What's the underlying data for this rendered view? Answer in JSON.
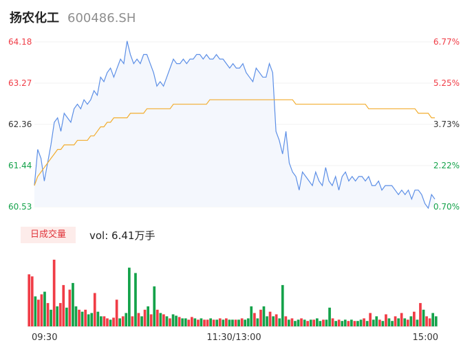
{
  "header": {
    "name": "扬农化工",
    "code": "600486.SH"
  },
  "colors": {
    "up": "#f03c46",
    "down": "#14a24a",
    "neutral": "#333333",
    "price_line": "#5b8ee6",
    "price_fill": "#f4f7fd",
    "avg_line": "#f2ac2c"
  },
  "volume_panel": {
    "badge_label": "日成交量",
    "value_text": "vol: 6.41万手"
  },
  "chart_data": [
    {
      "type": "line",
      "title": "",
      "xlabel": "",
      "ylabel": "",
      "y_ticks": [
        "64.18",
        "63.27",
        "62.36",
        "61.44",
        "60.53"
      ],
      "pct_ticks": [
        "6.77%",
        "5.25%",
        "3.73%",
        "2.22%",
        "0.70%"
      ],
      "ylim": [
        60.53,
        64.18
      ],
      "x_ticks": [
        "09:30",
        "11:30/13:00",
        "15:00"
      ],
      "series": [
        {
          "role": "price",
          "values": [
            61.0,
            61.8,
            61.6,
            61.1,
            61.5,
            61.9,
            62.4,
            62.5,
            62.2,
            62.6,
            62.5,
            62.4,
            62.7,
            62.8,
            62.7,
            62.9,
            62.8,
            62.9,
            63.1,
            63.0,
            63.4,
            63.3,
            63.5,
            63.6,
            63.4,
            63.6,
            63.8,
            63.7,
            64.2,
            63.9,
            63.7,
            63.8,
            63.7,
            63.9,
            63.9,
            63.7,
            63.5,
            63.2,
            63.3,
            63.2,
            63.4,
            63.6,
            63.8,
            63.7,
            63.7,
            63.8,
            63.7,
            63.8,
            63.8,
            63.9,
            63.9,
            63.8,
            63.9,
            63.8,
            63.8,
            63.9,
            63.8,
            63.8,
            63.7,
            63.6,
            63.7,
            63.6,
            63.6,
            63.7,
            63.5,
            63.4,
            63.3,
            63.6,
            63.5,
            63.4,
            63.4,
            63.7,
            63.5,
            62.2,
            62.0,
            61.7,
            62.2,
            61.5,
            61.3,
            61.2,
            60.9,
            61.3,
            61.2,
            61.1,
            61.0,
            61.3,
            61.1,
            61.0,
            61.4,
            61.1,
            61.0,
            61.2,
            60.9,
            61.2,
            61.3,
            61.1,
            61.2,
            61.1,
            61.2,
            61.2,
            61.1,
            61.2,
            61.0,
            61.0,
            61.1,
            60.9,
            61.0,
            61.0,
            61.0,
            60.9,
            60.8,
            60.9,
            60.8,
            60.9,
            60.7,
            60.9,
            60.9,
            60.8,
            60.6,
            60.5,
            60.8,
            60.7
          ]
        },
        {
          "role": "average",
          "values": [
            61.0,
            61.2,
            61.3,
            61.4,
            61.5,
            61.6,
            61.7,
            61.8,
            61.8,
            61.9,
            61.9,
            61.9,
            61.9,
            62.0,
            62.0,
            62.0,
            62.0,
            62.1,
            62.1,
            62.2,
            62.3,
            62.3,
            62.4,
            62.4,
            62.5,
            62.5,
            62.5,
            62.5,
            62.5,
            62.6,
            62.6,
            62.6,
            62.6,
            62.6,
            62.7,
            62.7,
            62.7,
            62.7,
            62.7,
            62.7,
            62.7,
            62.7,
            62.8,
            62.8,
            62.8,
            62.8,
            62.8,
            62.8,
            62.8,
            62.8,
            62.8,
            62.8,
            62.8,
            62.9,
            62.9,
            62.9,
            62.9,
            62.9,
            62.9,
            62.9,
            62.9,
            62.9,
            62.9,
            62.9,
            62.9,
            62.9,
            62.9,
            62.9,
            62.9,
            62.9,
            62.9,
            62.9,
            62.9,
            62.9,
            62.9,
            62.9,
            62.9,
            62.9,
            62.9,
            62.8,
            62.8,
            62.8,
            62.8,
            62.8,
            62.8,
            62.8,
            62.8,
            62.8,
            62.8,
            62.8,
            62.8,
            62.8,
            62.8,
            62.8,
            62.8,
            62.8,
            62.8,
            62.8,
            62.8,
            62.8,
            62.8,
            62.7,
            62.7,
            62.7,
            62.7,
            62.7,
            62.7,
            62.7,
            62.7,
            62.7,
            62.7,
            62.7,
            62.7,
            62.7,
            62.7,
            62.7,
            62.6,
            62.6,
            62.6,
            62.6,
            62.5,
            62.5
          ]
        }
      ]
    },
    {
      "type": "bar",
      "title": "",
      "xlabel": "",
      "ylabel": "",
      "values": [
        0.78,
        0.75,
        0.45,
        0.4,
        0.48,
        0.52,
        0.35,
        0.25,
        1.0,
        0.3,
        0.35,
        0.62,
        0.28,
        0.55,
        0.65,
        0.3,
        0.25,
        0.22,
        0.25,
        0.18,
        0.2,
        0.5,
        0.22,
        0.15,
        0.15,
        0.12,
        0.1,
        0.13,
        0.4,
        0.12,
        0.15,
        0.2,
        0.88,
        0.15,
        0.8,
        0.2,
        0.15,
        0.25,
        0.3,
        0.18,
        0.6,
        0.25,
        0.2,
        0.18,
        0.15,
        0.12,
        0.18,
        0.16,
        0.14,
        0.12,
        0.12,
        0.1,
        0.14,
        0.12,
        0.1,
        0.12,
        0.1,
        0.1,
        0.12,
        0.1,
        0.1,
        0.12,
        0.1,
        0.12,
        0.1,
        0.1,
        0.1,
        0.1,
        0.12,
        0.1,
        0.12,
        0.3,
        0.2,
        0.12,
        0.25,
        0.3,
        0.15,
        0.22,
        0.15,
        0.18,
        0.12,
        0.62,
        0.15,
        0.1,
        0.12,
        0.08,
        0.1,
        0.12,
        0.1,
        0.08,
        0.1,
        0.1,
        0.12,
        0.08,
        0.1,
        0.1,
        0.28,
        0.12,
        0.08,
        0.1,
        0.08,
        0.1,
        0.08,
        0.1,
        0.08,
        0.08,
        0.1,
        0.12,
        0.08,
        0.2,
        0.1,
        0.15,
        0.1,
        0.08,
        0.18,
        0.12,
        0.08,
        0.15,
        0.12,
        0.2,
        0.12,
        0.1,
        0.15,
        0.22,
        0.1,
        0.35,
        0.25,
        0.15,
        0.12,
        0.2,
        0.15
      ],
      "direction": [
        "u",
        "u",
        "d",
        "u",
        "u",
        "d",
        "u",
        "d",
        "u",
        "d",
        "u",
        "u",
        "d",
        "u",
        "d",
        "d",
        "u",
        "d",
        "u",
        "d",
        "d",
        "u",
        "d",
        "d",
        "u",
        "u",
        "d",
        "u",
        "u",
        "d",
        "u",
        "d",
        "d",
        "u",
        "d",
        "u",
        "d",
        "u",
        "d",
        "u",
        "d",
        "u",
        "d",
        "u",
        "d",
        "u",
        "d",
        "d",
        "u",
        "d",
        "d",
        "u",
        "u",
        "d",
        "u",
        "d",
        "u",
        "u",
        "d",
        "u",
        "d",
        "u",
        "d",
        "u",
        "d",
        "d",
        "u",
        "d",
        "u",
        "d",
        "d",
        "d",
        "u",
        "d",
        "u",
        "d",
        "d",
        "u",
        "d",
        "u",
        "d",
        "d",
        "u",
        "d",
        "u",
        "d",
        "d",
        "u",
        "d",
        "u",
        "d",
        "u",
        "d",
        "d",
        "u",
        "d",
        "d",
        "u",
        "d",
        "u",
        "d",
        "d",
        "u",
        "d",
        "u",
        "d",
        "d",
        "u",
        "d",
        "u",
        "d",
        "d",
        "u",
        "d",
        "u",
        "d",
        "d",
        "u",
        "d",
        "u",
        "d",
        "u",
        "d",
        "u",
        "d",
        "u",
        "d",
        "u",
        "u",
        "d",
        "d"
      ]
    }
  ]
}
